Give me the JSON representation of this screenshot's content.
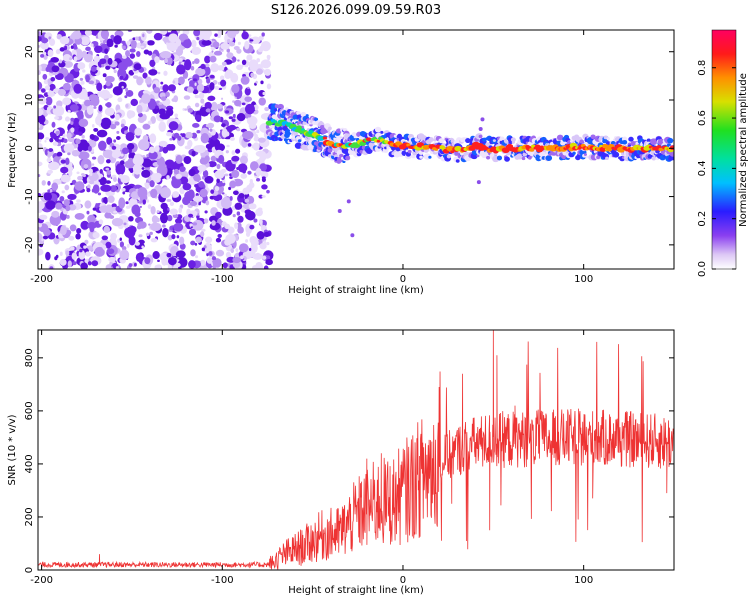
{
  "title": "S126.2026.099.09.59.R03",
  "colors": {
    "snr_line": "#ee3333",
    "frame": "#000000"
  },
  "chart_data": [
    {
      "type": "heatmap",
      "xlabel": "Height of straight line (km)",
      "ylabel": "Frequency (Hz)",
      "xlim": [
        -202,
        150
      ],
      "ylim": [
        -25,
        24.5
      ],
      "xticks": [
        -200,
        -100,
        0,
        100
      ],
      "yticks": [
        -20,
        -10,
        0,
        10,
        20
      ],
      "colorbar": {
        "label": "Normalized spectral amplitude",
        "range": [
          0,
          0.95
        ],
        "ticks": [
          0,
          0.2,
          0.4,
          0.6,
          0.8
        ]
      },
      "noise_region_x": [
        -202,
        -74
      ],
      "ridge": [
        {
          "x": -74,
          "y": 5.5
        },
        {
          "x": -65,
          "y": 5.0
        },
        {
          "x": -58,
          "y": 4.0
        },
        {
          "x": -50,
          "y": 3.0
        },
        {
          "x": -42,
          "y": 1.5
        },
        {
          "x": -35,
          "y": 0.5
        },
        {
          "x": -25,
          "y": 0.8
        },
        {
          "x": -15,
          "y": 2.0
        },
        {
          "x": -8,
          "y": 1.0
        },
        {
          "x": 0,
          "y": 0.5
        },
        {
          "x": 10,
          "y": 0.3
        },
        {
          "x": 20,
          "y": 0.0
        },
        {
          "x": 30,
          "y": -0.5
        },
        {
          "x": 40,
          "y": 0.5
        },
        {
          "x": 50,
          "y": -0.3
        },
        {
          "x": 60,
          "y": 0.0
        },
        {
          "x": 80,
          "y": 0.0
        },
        {
          "x": 100,
          "y": 0.3
        },
        {
          "x": 120,
          "y": 0.0
        },
        {
          "x": 150,
          "y": 0.0
        }
      ],
      "outliers": [
        {
          "x": -28,
          "y": -18
        },
        {
          "x": -35,
          "y": -13
        },
        {
          "x": -30,
          "y": -11
        },
        {
          "x": 44,
          "y": 6
        },
        {
          "x": 43,
          "y": 4
        },
        {
          "x": 42,
          "y": -7
        }
      ]
    },
    {
      "type": "line",
      "xlabel": "Height of straight line (km)",
      "ylabel": "SNR (10 * v/v)",
      "xlim": [
        -202,
        150
      ],
      "ylim": [
        0,
        905
      ],
      "xticks": [
        -200,
        -100,
        0,
        100
      ],
      "yticks": [
        0,
        200,
        400,
        600,
        800
      ],
      "series": [
        {
          "name": "SNR",
          "profile": [
            {
              "x": -202,
              "y": 20
            },
            {
              "x": -74,
              "y": 20
            },
            {
              "x": -65,
              "y": 60
            },
            {
              "x": -55,
              "y": 90
            },
            {
              "x": -45,
              "y": 130
            },
            {
              "x": -35,
              "y": 140
            },
            {
              "x": -25,
              "y": 210
            },
            {
              "x": -15,
              "y": 250
            },
            {
              "x": -5,
              "y": 260
            },
            {
              "x": 5,
              "y": 320
            },
            {
              "x": 15,
              "y": 380
            },
            {
              "x": 25,
              "y": 430
            },
            {
              "x": 35,
              "y": 470
            },
            {
              "x": 50,
              "y": 490
            },
            {
              "x": 70,
              "y": 495
            },
            {
              "x": 100,
              "y": 500
            },
            {
              "x": 130,
              "y": 490
            },
            {
              "x": 150,
              "y": 480
            }
          ],
          "spikes": [
            {
              "x": 50,
              "y": 905
            },
            {
              "x": 52,
              "y": 810
            },
            {
              "x": 33,
              "y": 740
            },
            {
              "x": 62,
              "y": 620
            },
            {
              "x": 48,
              "y": 150
            },
            {
              "x": 27,
              "y": 250
            },
            {
              "x": -20,
              "y": 420
            },
            {
              "x": -12,
              "y": 440
            },
            {
              "x": -168,
              "y": 60
            },
            {
              "x": 105,
              "y": 270
            },
            {
              "x": 146,
              "y": 290
            }
          ]
        }
      ]
    }
  ]
}
